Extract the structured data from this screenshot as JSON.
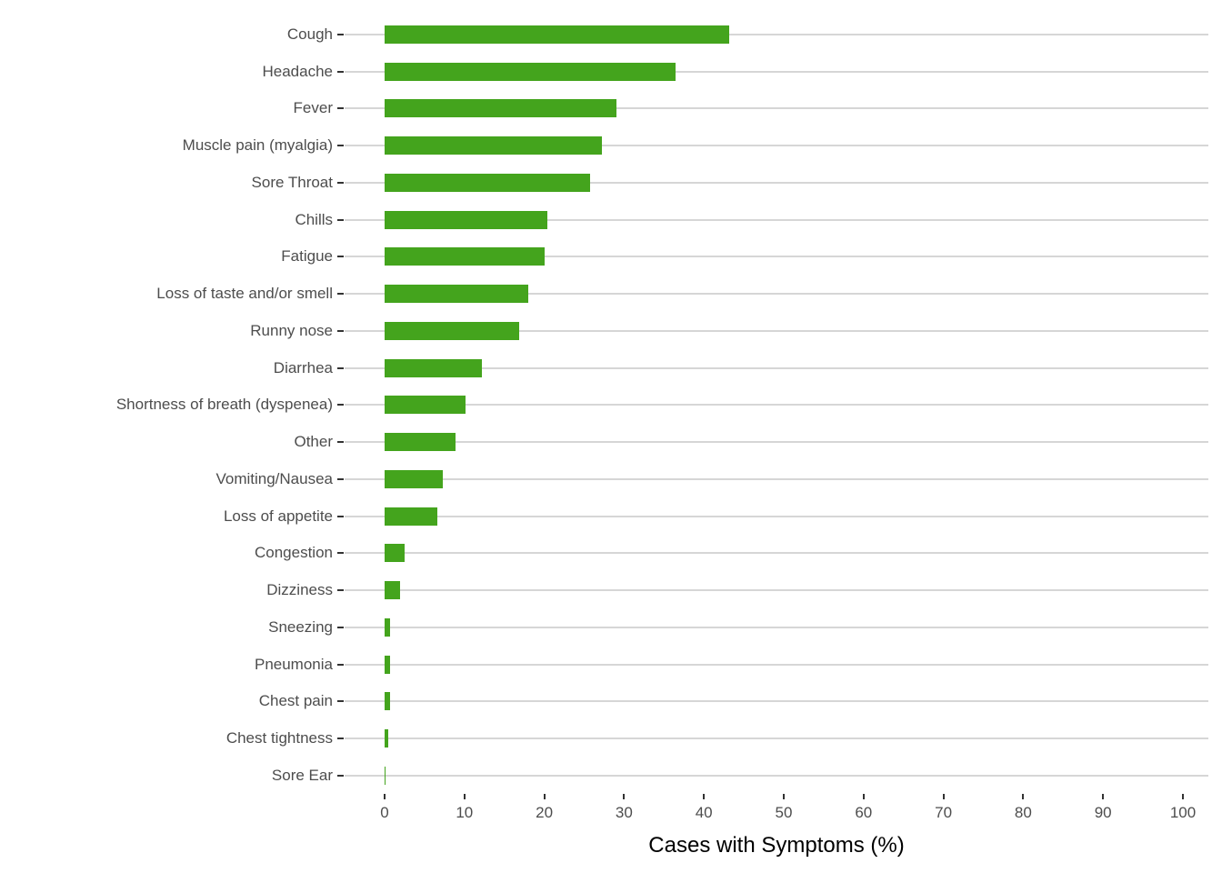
{
  "chart_data": {
    "type": "bar",
    "orientation": "horizontal",
    "title": "",
    "xlabel": "Cases with Symptoms (%)",
    "ylabel": "",
    "categories": [
      "Cough",
      "Headache",
      "Fever",
      "Muscle pain (myalgia)",
      "Sore Throat",
      "Chills",
      "Fatigue",
      "Loss of taste and/or smell",
      "Runny nose",
      "Diarrhea",
      "Shortness of breath (dyspenea)",
      "Other",
      "Vomiting/Nausea",
      "Loss of appetite",
      "Congestion",
      "Dizziness",
      "Sneezing",
      "Pneumonia",
      "Chest pain",
      "Chest tightness",
      "Sore Ear"
    ],
    "values": [
      43.2,
      36.5,
      29.0,
      27.2,
      25.7,
      20.4,
      20.0,
      18.0,
      16.8,
      12.2,
      10.1,
      8.9,
      7.3,
      6.6,
      2.5,
      1.9,
      0.7,
      0.7,
      0.7,
      0.4,
      0.1
    ],
    "xlim": [
      0,
      100
    ],
    "x_ticks": [
      0,
      10,
      20,
      30,
      40,
      50,
      60,
      70,
      80,
      90,
      100
    ],
    "grid": "horizontal-category-lines-only",
    "legend": "none",
    "colors": {
      "bar": "#44A41D",
      "gridline": "#D6D6D6",
      "tick_mark": "#333333",
      "axis_text": "#4D4D4D",
      "axis_title": "#000000",
      "background": "#FFFFFF"
    }
  }
}
